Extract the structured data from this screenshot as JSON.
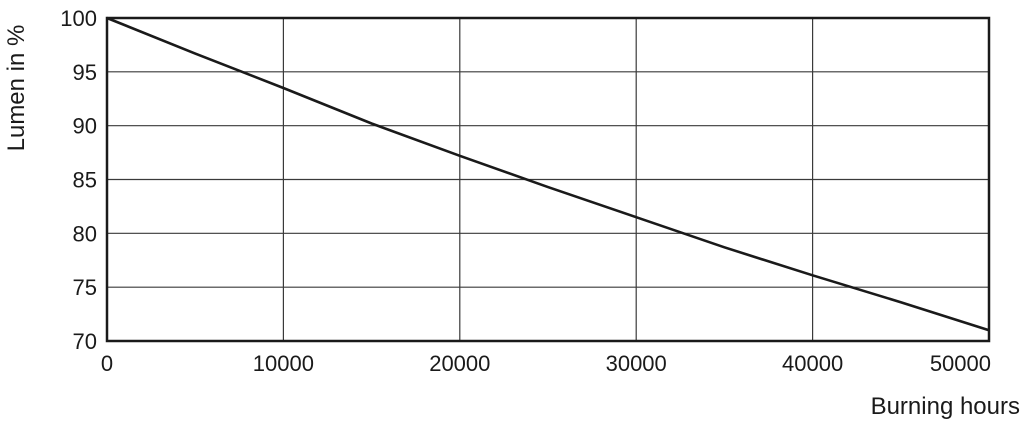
{
  "chart_data": {
    "type": "line",
    "xlabel": "Burning hours",
    "ylabel": "Lumen in %",
    "xlim": [
      0,
      50000
    ],
    "ylim": [
      70,
      100
    ],
    "x_ticks": [
      0,
      10000,
      20000,
      30000,
      40000,
      50000
    ],
    "y_ticks": [
      70,
      75,
      80,
      85,
      90,
      95,
      100
    ],
    "grid": true,
    "legend": "none",
    "series": [
      {
        "x": [
          0,
          5000,
          10000,
          15000,
          20000,
          25000,
          30000,
          35000,
          40000,
          45000,
          50000
        ],
        "values": [
          100,
          96.7,
          93.5,
          90.2,
          87.2,
          84.3,
          81.5,
          78.7,
          76.1,
          73.6,
          71.0
        ]
      }
    ]
  }
}
